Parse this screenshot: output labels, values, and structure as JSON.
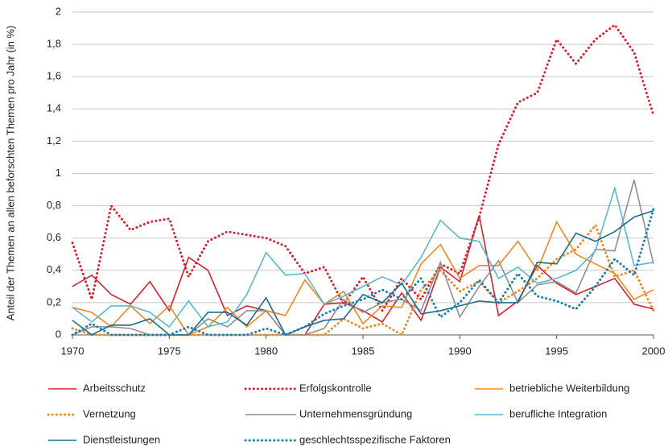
{
  "chart_data": {
    "type": "line",
    "y_label": "Anteil der Themen an allen beforschten Themen pro Jahr (in %)",
    "x": [
      1970,
      1971,
      1972,
      1973,
      1974,
      1975,
      1976,
      1977,
      1978,
      1979,
      1980,
      1981,
      1982,
      1983,
      1984,
      1985,
      1986,
      1987,
      1988,
      1989,
      1990,
      1991,
      1992,
      1993,
      1994,
      1995,
      1996,
      1997,
      1998,
      1999,
      2000
    ],
    "xlim": [
      1970,
      2000
    ],
    "xticks": [
      1970,
      1975,
      1980,
      1985,
      1990,
      1995,
      2000
    ],
    "ylim": [
      0,
      2
    ],
    "yticks": [
      0,
      {
        "value": 0.2,
        "label": "0,2"
      },
      {
        "value": 0.4,
        "label": "0,4"
      },
      {
        "value": 0.6,
        "label": "0,6"
      },
      {
        "value": 0.8,
        "label": "0,8"
      },
      1,
      {
        "value": 1.2,
        "label": "1,2"
      },
      {
        "value": 1.4,
        "label": "1,4"
      },
      {
        "value": 1.6,
        "label": "1,6"
      },
      {
        "value": 1.8,
        "label": "1,8"
      },
      2
    ],
    "grid": true,
    "legend": "bottom",
    "series": [
      {
        "name": "Arbeitsschutz",
        "color": "#d8202f",
        "style": "solid",
        "values": [
          0.3,
          0.37,
          0.25,
          0.19,
          0.33,
          0.15,
          0.48,
          0.4,
          0.12,
          0.18,
          0.15,
          0.0,
          0.0,
          0.19,
          0.2,
          0.15,
          0.08,
          0.26,
          0.09,
          0.42,
          0.33,
          0.74,
          0.12,
          0.21,
          0.43,
          0.32,
          0.25,
          0.3,
          0.35,
          0.19,
          0.16
        ]
      },
      {
        "name": "Erfolgskontrolle",
        "color": "#d8202f",
        "style": "dotted",
        "values": [
          0.57,
          0.22,
          0.8,
          0.65,
          0.7,
          0.72,
          0.36,
          0.58,
          0.64,
          0.62,
          0.6,
          0.55,
          0.38,
          0.42,
          0.19,
          0.36,
          0.15,
          0.35,
          0.22,
          0.44,
          0.38,
          0.73,
          1.18,
          1.44,
          1.5,
          1.83,
          1.68,
          1.83,
          1.92,
          1.75,
          1.36
        ]
      },
      {
        "name": "betriebliche Weiterbildung",
        "color": "#f0891f",
        "style": "solid",
        "values": [
          0.17,
          0.14,
          0.05,
          0.18,
          0.07,
          0.18,
          0.0,
          0.05,
          0.17,
          0.05,
          0.15,
          0.12,
          0.34,
          0.19,
          0.27,
          0.07,
          0.18,
          0.17,
          0.44,
          0.56,
          0.35,
          0.43,
          0.43,
          0.58,
          0.4,
          0.7,
          0.5,
          0.44,
          0.38,
          0.22,
          0.28
        ]
      },
      {
        "name": "Vernetzung",
        "color": "#f0891f",
        "style": "dotted",
        "values": [
          0.04,
          0.0,
          0.0,
          0.0,
          0.0,
          0.0,
          0.0,
          0.0,
          0.0,
          0.0,
          0.0,
          0.0,
          0.0,
          0.0,
          0.1,
          0.04,
          0.07,
          0.0,
          0.28,
          0.4,
          0.27,
          0.33,
          0.2,
          0.27,
          0.35,
          0.47,
          0.53,
          0.68,
          0.36,
          0.4,
          0.15
        ]
      },
      {
        "name": "Unternehmensgründung",
        "color": "#8f8f8f",
        "style": "solid",
        "values": [
          0.0,
          0.05,
          0.05,
          0.04,
          0.0,
          0.0,
          0.0,
          0.1,
          0.05,
          0.15,
          0.15,
          0.0,
          0.0,
          0.04,
          0.22,
          0.14,
          0.2,
          0.22,
          0.15,
          0.45,
          0.11,
          0.3,
          0.46,
          0.2,
          0.31,
          0.33,
          0.26,
          0.53,
          0.52,
          0.96,
          0.44
        ]
      },
      {
        "name": "berufliche Integration",
        "color": "#5ab8cc",
        "style": "solid",
        "values": [
          0.17,
          0.08,
          0.18,
          0.18,
          0.14,
          0.05,
          0.21,
          0.05,
          0.08,
          0.25,
          0.51,
          0.37,
          0.38,
          0.19,
          0.24,
          0.3,
          0.36,
          0.31,
          0.48,
          0.71,
          0.6,
          0.58,
          0.35,
          0.42,
          0.32,
          0.35,
          0.4,
          0.52,
          0.91,
          0.43,
          0.45
        ]
      },
      {
        "name": "Dienstleistungen",
        "color": "#1b6e8a",
        "style": "solid",
        "values": [
          0.09,
          0.0,
          0.06,
          0.06,
          0.1,
          0.0,
          0.0,
          0.14,
          0.14,
          0.06,
          0.23,
          0.0,
          0.05,
          0.09,
          0.1,
          0.25,
          0.2,
          0.32,
          0.13,
          0.15,
          0.18,
          0.21,
          0.2,
          0.2,
          0.45,
          0.44,
          0.63,
          0.58,
          0.64,
          0.73,
          0.77
        ]
      },
      {
        "name": "geschlechtsspezifische Faktoren",
        "color": "#1a7fb0",
        "style": "dotted",
        "values": [
          0.0,
          0.07,
          0.0,
          0.0,
          0.0,
          0.0,
          0.05,
          0.0,
          0.0,
          0.0,
          0.04,
          0.0,
          0.05,
          0.13,
          0.18,
          0.22,
          0.28,
          0.22,
          0.35,
          0.11,
          0.2,
          0.34,
          0.2,
          0.38,
          0.24,
          0.21,
          0.16,
          0.3,
          0.47,
          0.37,
          0.78
        ]
      }
    ]
  }
}
